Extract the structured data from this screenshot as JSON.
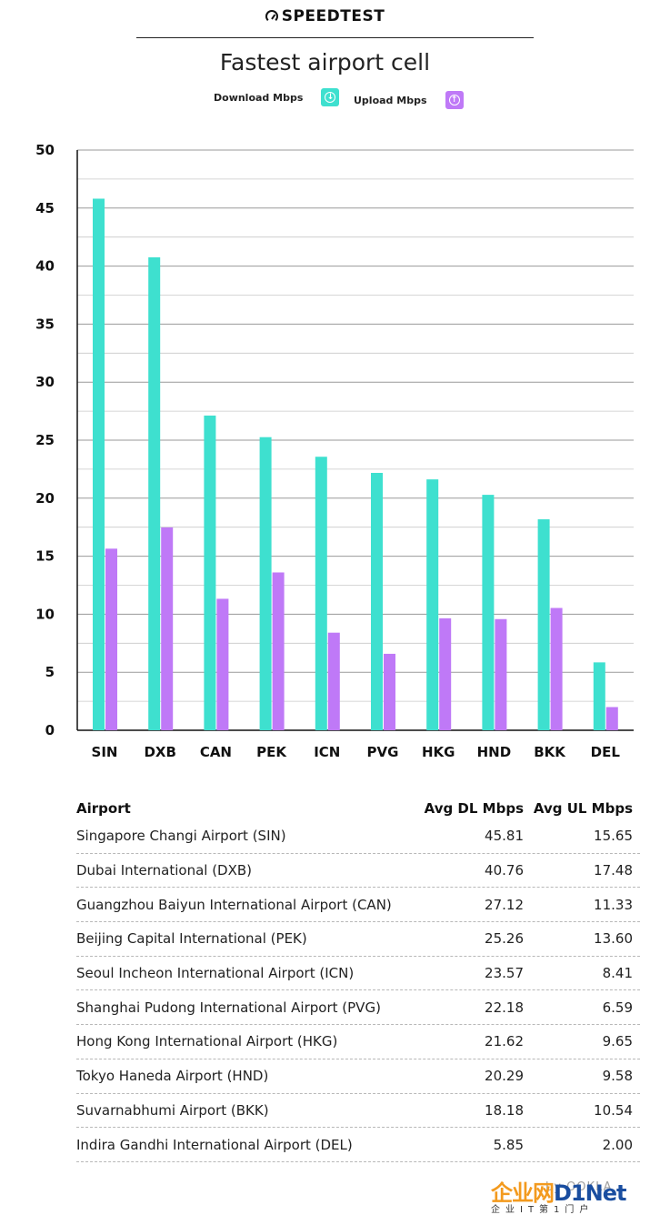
{
  "header": {
    "brand": "SPEEDTEST",
    "brand_icon": "speedometer-icon",
    "title": "Fastest airport cell"
  },
  "legend": {
    "download_label": "Download Mbps",
    "download_icon": "arrow-down-circle-icon",
    "upload_label": "Upload Mbps",
    "upload_icon": "arrow-up-circle-icon"
  },
  "colors": {
    "download": "#3ee0cf",
    "upload": "#bf79f7",
    "grid": "#9a9a9a"
  },
  "chart_data": {
    "type": "bar",
    "title": "Fastest airport cell",
    "xlabel": "",
    "ylabel": "",
    "ylim": [
      0,
      50
    ],
    "yticks": [
      0,
      5,
      10,
      15,
      20,
      25,
      30,
      35,
      40,
      45,
      50
    ],
    "grid": true,
    "legend_position": "top-center",
    "categories": [
      "SIN",
      "DXB",
      "CAN",
      "PEK",
      "ICN",
      "PVG",
      "HKG",
      "HND",
      "BKK",
      "DEL"
    ],
    "series": [
      {
        "name": "Download Mbps",
        "values": [
          45.81,
          40.76,
          27.12,
          25.26,
          23.57,
          22.18,
          21.62,
          20.29,
          18.18,
          5.85
        ]
      },
      {
        "name": "Upload Mbps",
        "values": [
          15.65,
          17.48,
          11.33,
          13.6,
          8.41,
          6.59,
          9.65,
          9.58,
          10.54,
          2.0
        ]
      }
    ]
  },
  "table": {
    "headers": [
      "Airport",
      "Avg DL Mbps",
      "Avg UL Mbps"
    ],
    "rows": [
      [
        "Singapore Changi Airport (SIN)",
        "45.81",
        "15.65"
      ],
      [
        "Dubai International (DXB)",
        "40.76",
        "17.48"
      ],
      [
        "Guangzhou Baiyun International Airport (CAN)",
        "27.12",
        "11.33"
      ],
      [
        "Beijing Capital International (PEK)",
        "25.26",
        "13.60"
      ],
      [
        "Seoul Incheon International Airport (ICN)",
        "23.57",
        "8.41"
      ],
      [
        "Shanghai Pudong International Airport (PVG)",
        "22.18",
        "6.59"
      ],
      [
        "Hong Kong International Airport (HKG)",
        "21.62",
        "9.65"
      ],
      [
        "Tokyo Haneda Airport (HND)",
        "20.29",
        "9.58"
      ],
      [
        "Suvarnabhumi Airport (BKK)",
        "18.18",
        "10.54"
      ],
      [
        "Indira Gandhi International Airport (DEL)",
        "5.85",
        "2.00"
      ]
    ]
  },
  "watermark": {
    "main_left": "企业网",
    "main_right": "D1Net",
    "sub": "企业IT第1门户",
    "by": "by OOKLA"
  }
}
